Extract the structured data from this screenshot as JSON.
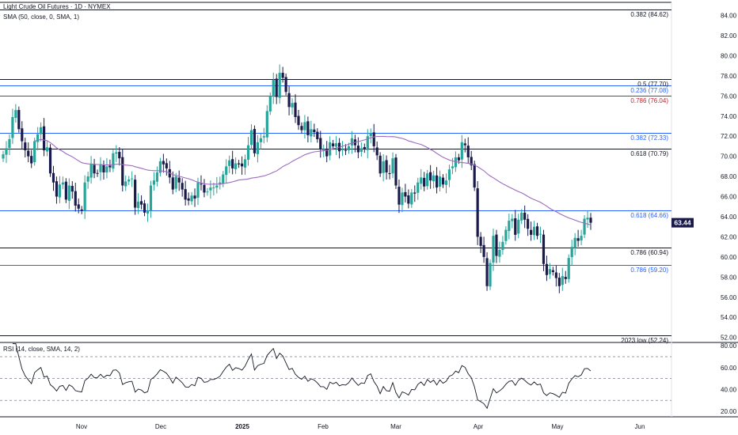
{
  "legend": {
    "title": "Light Crude Oil Futures · 1D · NYMEX",
    "sma": "SMA (50, close, 0, SMA, 1)",
    "rsi": "RSI (14, close, SMA, 14, 2)"
  },
  "current_price": "63.44",
  "colors": {
    "up": "#26a69a",
    "down": "#1a1b4b",
    "sma": "#9c6bbf",
    "rsi": "#131722",
    "blue_level": "#2962ff",
    "red_level": "#b22833",
    "black_level": "#131722",
    "price_tag": "#1a1b4b"
  },
  "chart_data": [
    {
      "type": "candlestick",
      "name": "price-panel",
      "ylim": [
        51.5,
        85.3
      ],
      "y_ticks": [
        "84.00",
        "82.00",
        "80.00",
        "78.00",
        "76.00",
        "74.00",
        "72.00",
        "70.00",
        "68.00",
        "66.00",
        "64.00",
        "62.00",
        "60.00",
        "58.00",
        "56.00",
        "54.00",
        "52.00"
      ],
      "x_ticks": [
        "Nov",
        "Dec",
        "2025",
        "Feb",
        "Mar",
        "Apr",
        "May",
        "Jun"
      ],
      "sma_period": 50,
      "levels": [
        {
          "label": "0.382 (84.62)",
          "value": 84.62,
          "color": "black"
        },
        {
          "label": "0.5 (77.70)",
          "value": 77.7,
          "color": "black"
        },
        {
          "label": "0.236 (77.08)",
          "value": 77.08,
          "color": "blue"
        },
        {
          "label": "0.786 (76.04)",
          "value": 76.04,
          "color": "red"
        },
        {
          "label": "0.382 (72.33)",
          "value": 72.33,
          "color": "blue"
        },
        {
          "label": "0.618 (70.79)",
          "value": 70.79,
          "color": "black"
        },
        {
          "label": "0.618 (64.66)",
          "value": 64.66,
          "color": "blue"
        },
        {
          "label": "0.786 (60.94)",
          "value": 60.94,
          "color": "black"
        },
        {
          "label": "0.786 (59.20)",
          "value": 59.2,
          "color": "blue"
        },
        {
          "label": "2023 low (52.24)",
          "value": 52.24,
          "color": "black"
        }
      ],
      "closes": [
        70.2,
        70.8,
        71.7,
        73.9,
        74.6,
        72.7,
        71.5,
        70.6,
        70.0,
        69.3,
        71.5,
        72.2,
        72.9,
        70.6,
        70.9,
        68.3,
        67.4,
        66.0,
        67.2,
        67.4,
        65.7,
        67.1,
        66.5,
        65.1,
        64.8,
        64.6,
        67.4,
        68.0,
        69.2,
        68.3,
        68.3,
        69.2,
        68.4,
        69.0,
        68.9,
        70.3,
        70.4,
        69.8,
        67.1,
        67.5,
        67.7,
        67.8,
        64.9,
        65.5,
        65.2,
        64.4,
        64.6,
        67.1,
        67.6,
        68.4,
        69.5,
        69.2,
        68.8,
        67.9,
        66.7,
        68.0,
        67.4,
        66.7,
        65.7,
        65.6,
        66.1,
        65.8,
        67.4,
        67.2,
        66.4,
        66.5,
        66.9,
        66.9,
        67.1,
        67.4,
        68.2,
        69.0,
        69.6,
        68.8,
        69.3,
        69.2,
        69.0,
        69.7,
        71.1,
        72.6,
        70.3,
        71.4,
        71.8,
        72.0,
        74.5,
        76.0,
        77.6,
        75.9,
        78.3,
        77.8,
        76.4,
        74.9,
        75.3,
        73.9,
        73.1,
        72.6,
        73.4,
        72.1,
        72.7,
        72.4,
        71.7,
        70.7,
        70.7,
        70.0,
        71.4,
        71.0,
        71.3,
        70.5,
        70.7,
        70.6,
        71.0,
        71.8,
        71.1,
        70.4,
        70.8,
        70.7,
        72.0,
        72.3,
        71.0,
        70.1,
        68.3,
        69.5,
        68.4,
        68.3,
        69.8,
        67.1,
        65.2,
        66.4,
        66.0,
        65.3,
        66.4,
        66.3,
        67.4,
        67.9,
        67.0,
        68.3,
        67.6,
        68.1,
        66.9,
        68.0,
        67.2,
        67.6,
        68.7,
        69.0,
        69.9,
        69.6,
        71.4,
        71.1,
        69.9,
        69.1,
        66.9,
        62.0,
        61.1,
        60.0,
        57.1,
        59.4,
        62.1,
        60.1,
        60.7,
        61.5,
        62.7,
        63.6,
        63.8,
        62.2,
        63.7,
        64.4,
        63.7,
        62.8,
        62.2,
        63.0,
        62.1,
        62.3,
        59.3,
        58.2,
        58.8,
        58.5,
        57.9,
        57.1,
        58.1,
        57.8,
        59.9,
        61.0,
        61.9,
        61.6,
        62.1,
        63.8,
        63.9,
        63.4
      ]
    },
    {
      "type": "line",
      "name": "rsi-panel",
      "ylim": [
        15.0,
        83.0
      ],
      "y_ticks": [
        "80.00",
        "60.00",
        "40.00",
        "20.00"
      ],
      "guides": [
        70,
        50,
        30
      ],
      "period": 14
    }
  ]
}
